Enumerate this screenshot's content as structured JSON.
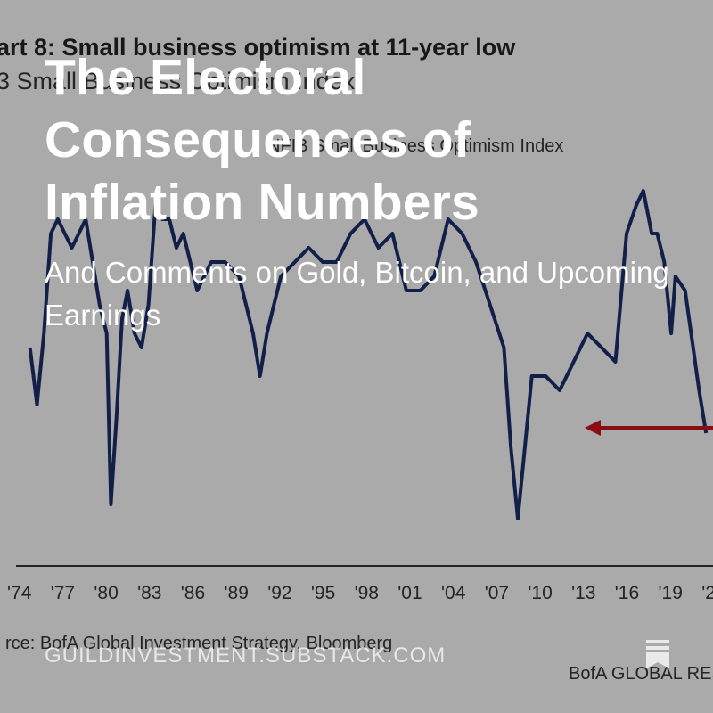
{
  "cover": {
    "title": "The Electoral Consequences of Inflation Numbers",
    "subtitle": "And Comments on Gold, Bitcoin, and Upcoming Earnings",
    "publication": "GUILDINVESTMENT.SUBSTACK.COM",
    "publication_icon": "bookmark-stack-icon",
    "overlay_color": "#000000"
  },
  "background_chart": {
    "title": "art 8: Small business optimism at 11-year low",
    "subtitle": "3 Small Business Optimism Index",
    "legend_label": "NFIB Small Business Optimism Index",
    "source": "rce: BofA Global Investment Strategy, Bloomberg",
    "branding": "BofA GLOBAL RES",
    "annotation_arrow_color": "#c0121d",
    "line_color": "#1a2c66"
  },
  "chart_data": {
    "type": "line",
    "categories": [
      "'74",
      "'77",
      "'80",
      "'83",
      "'86",
      "'89",
      "'92",
      "'95",
      "'98",
      "'01",
      "'04",
      "'07",
      "'10",
      "'13",
      "'16",
      "'19",
      "'2"
    ],
    "series": [
      {
        "x": [
          1974.0,
          1974.5,
          1975.0,
          1975.5,
          1976.0,
          1976.5,
          1977.0,
          1977.5,
          1978.0,
          1978.5,
          1979.0,
          1979.5,
          1979.8,
          1980.2,
          1980.6,
          1981.0,
          1981.5,
          1982.0,
          1982.5,
          1983.0,
          1983.5,
          1984.0,
          1984.5,
          1985.0,
          1986.0,
          1987.0,
          1988.0,
          1989.0,
          1990.0,
          1990.5,
          1991.0,
          1991.5,
          1992.0,
          1993.0,
          1994.0,
          1995.0,
          1996.0,
          1997.0,
          1998.0,
          1999.0,
          2000.0,
          2001.0,
          2002.0,
          2003.0,
          2004.0,
          2005.0,
          2006.0,
          2007.0,
          2008.0,
          2008.5,
          2009.0,
          2009.5,
          2010.0,
          2011.0,
          2012.0,
          2013.0,
          2014.0,
          2015.0,
          2016.0,
          2016.8,
          2017.5,
          2018.0,
          2018.6,
          2019.0,
          2019.5,
          2020.0,
          2020.3,
          2021.0,
          2022.0,
          2022.5
        ],
        "values": [
          95,
          91,
          96,
          103,
          104,
          103,
          102,
          103,
          104,
          101,
          98,
          96,
          84,
          90,
          97,
          99,
          96,
          95,
          98,
          105,
          104,
          104,
          102,
          103,
          99,
          101,
          101,
          100,
          96,
          93,
          96,
          98,
          100,
          101,
          102,
          101,
          101,
          103,
          104,
          102,
          103,
          99,
          99,
          100,
          104,
          103,
          101,
          98,
          95,
          88,
          83,
          88,
          93,
          93,
          92,
          94,
          96,
          95,
          94,
          103,
          105,
          106,
          103,
          103,
          101,
          96,
          100,
          99,
          92,
          89
        ]
      }
    ],
    "xlim": [
      1973,
      2023
    ],
    "ylim": [
      80,
      110
    ]
  }
}
